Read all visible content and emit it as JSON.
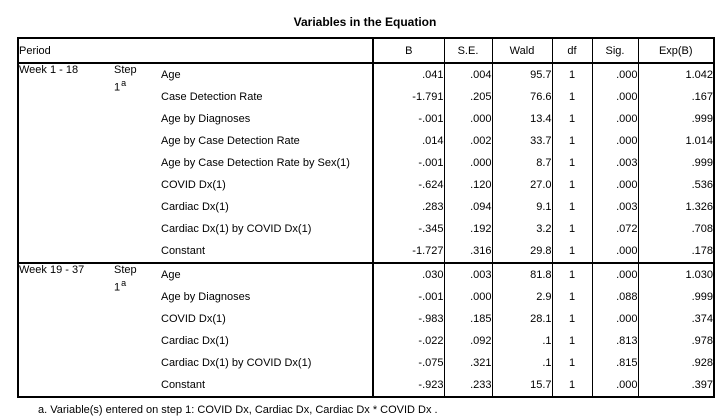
{
  "title": "Variables in the Equation",
  "colors": {
    "background": "#ffffff",
    "border": "#000000",
    "text": "#000000"
  },
  "table": {
    "row_header": "Period",
    "columns": [
      "B",
      "S.E.",
      "Wald",
      "df",
      "Sig.",
      "Exp(B)"
    ],
    "sections": [
      {
        "period": "Week 1 - 18",
        "step_label": "Step",
        "step_number": "1",
        "step_marker": "a",
        "rows": [
          {
            "variable": "Age",
            "B": ".041",
            "SE": ".004",
            "Wald": "95.7",
            "df": "1",
            "Sig": ".000",
            "ExpB": "1.042"
          },
          {
            "variable": "Case Detection Rate",
            "B": "-1.791",
            "SE": ".205",
            "Wald": "76.6",
            "df": "1",
            "Sig": ".000",
            "ExpB": ".167"
          },
          {
            "variable": "Age by Diagnoses",
            "B": "-.001",
            "SE": ".000",
            "Wald": "13.4",
            "df": "1",
            "Sig": ".000",
            "ExpB": ".999"
          },
          {
            "variable": "Age by Case Detection Rate",
            "B": ".014",
            "SE": ".002",
            "Wald": "33.7",
            "df": "1",
            "Sig": ".000",
            "ExpB": "1.014"
          },
          {
            "variable": "Age by Case Detection Rate by Sex(1)",
            "B": "-.001",
            "SE": ".000",
            "Wald": "8.7",
            "df": "1",
            "Sig": ".003",
            "ExpB": ".999"
          },
          {
            "variable": "COVID Dx(1)",
            "B": "-.624",
            "SE": ".120",
            "Wald": "27.0",
            "df": "1",
            "Sig": ".000",
            "ExpB": ".536"
          },
          {
            "variable": "Cardiac Dx(1)",
            "B": ".283",
            "SE": ".094",
            "Wald": "9.1",
            "df": "1",
            "Sig": ".003",
            "ExpB": "1.326"
          },
          {
            "variable": "Cardiac Dx(1) by COVID Dx(1)",
            "B": "-.345",
            "SE": ".192",
            "Wald": "3.2",
            "df": "1",
            "Sig": ".072",
            "ExpB": ".708"
          },
          {
            "variable": "Constant",
            "B": "-1.727",
            "SE": ".316",
            "Wald": "29.8",
            "df": "1",
            "Sig": ".000",
            "ExpB": ".178"
          }
        ]
      },
      {
        "period": "Week 19 - 37",
        "step_label": "Step",
        "step_number": "1",
        "step_marker": "a",
        "rows": [
          {
            "variable": "Age",
            "B": ".030",
            "SE": ".003",
            "Wald": "81.8",
            "df": "1",
            "Sig": ".000",
            "ExpB": "1.030"
          },
          {
            "variable": "Age by Diagnoses",
            "B": "-.001",
            "SE": ".000",
            "Wald": "2.9",
            "df": "1",
            "Sig": ".088",
            "ExpB": ".999"
          },
          {
            "variable": "COVID Dx(1)",
            "B": "-.983",
            "SE": ".185",
            "Wald": "28.1",
            "df": "1",
            "Sig": ".000",
            "ExpB": ".374"
          },
          {
            "variable": "Cardiac Dx(1)",
            "B": "-.022",
            "SE": ".092",
            "Wald": ".1",
            "df": "1",
            "Sig": ".813",
            "ExpB": ".978"
          },
          {
            "variable": "Cardiac Dx(1) by COVID Dx(1)",
            "B": "-.075",
            "SE": ".321",
            "Wald": ".1",
            "df": "1",
            "Sig": ".815",
            "ExpB": ".928"
          },
          {
            "variable": "Constant",
            "B": "-.923",
            "SE": ".233",
            "Wald": "15.7",
            "df": "1",
            "Sig": ".000",
            "ExpB": ".397"
          }
        ]
      }
    ],
    "footnote": "a. Variable(s) entered on step 1: COVID Dx, Cardiac Dx, Cardiac Dx * COVID Dx ."
  }
}
